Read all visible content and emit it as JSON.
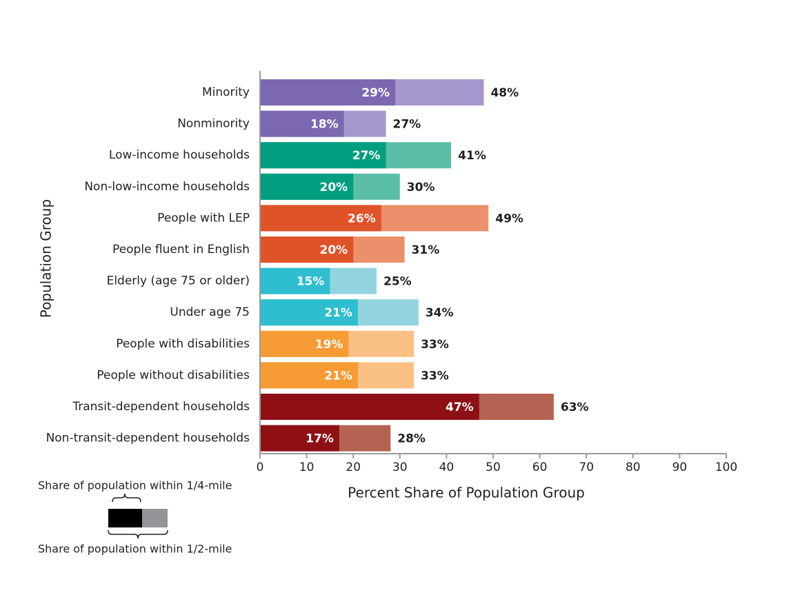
{
  "chart_data": {
    "type": "bar",
    "orientation": "horizontal",
    "overlap": true,
    "x_label": "Percent Share of Population Group",
    "y_label": "Population Group",
    "categories": [
      "Minority",
      "Nonminority",
      "Low-income households",
      "Non-low-income households",
      "People with LEP",
      "People fluent in English",
      "Elderly (age 75 or older)",
      "Under age 75",
      "People with disabilities",
      "People without disabilities",
      "Transit-dependent households",
      "Non-transit-dependent households"
    ],
    "series": [
      {
        "name": "Share of population within 1/2-mile",
        "color": "#939598",
        "colors": [
          "#a597cc",
          "#a597cc",
          "#5bbfa8",
          "#5bbfa8",
          "#eb906b",
          "#eb906b",
          "#93d4de",
          "#93d4de",
          "#fbc084",
          "#fbc084",
          "#b46352",
          "#b46352"
        ],
        "values": [
          48,
          27,
          41,
          30,
          49,
          31,
          25,
          34,
          33,
          33,
          63,
          28
        ],
        "value_labels": [
          "48%",
          "27%",
          "41%",
          "30%",
          "49%",
          "31%",
          "25%",
          "34%",
          "33%",
          "33%",
          "63%",
          "28%"
        ]
      },
      {
        "name": "Share of population within 1/4-mile",
        "color": "#000000",
        "colors": [
          "#7b68b0",
          "#7b68b0",
          "#009e80",
          "#009e80",
          "#e05228",
          "#e05228",
          "#2ebed0",
          "#2ebed0",
          "#f79b35",
          "#f79b35",
          "#8e1015",
          "#8e1015"
        ],
        "values": [
          29,
          18,
          27,
          20,
          26,
          20,
          15,
          21,
          19,
          21,
          47,
          17
        ],
        "value_labels": [
          "29%",
          "18%",
          "27%",
          "20%",
          "26%",
          "20%",
          "15%",
          "21%",
          "19%",
          "21%",
          "47%",
          "17%"
        ]
      }
    ],
    "xlim": [
      0,
      100
    ],
    "xticks": [
      0,
      10,
      20,
      30,
      40,
      50,
      60,
      70,
      80,
      90,
      100
    ]
  }
}
